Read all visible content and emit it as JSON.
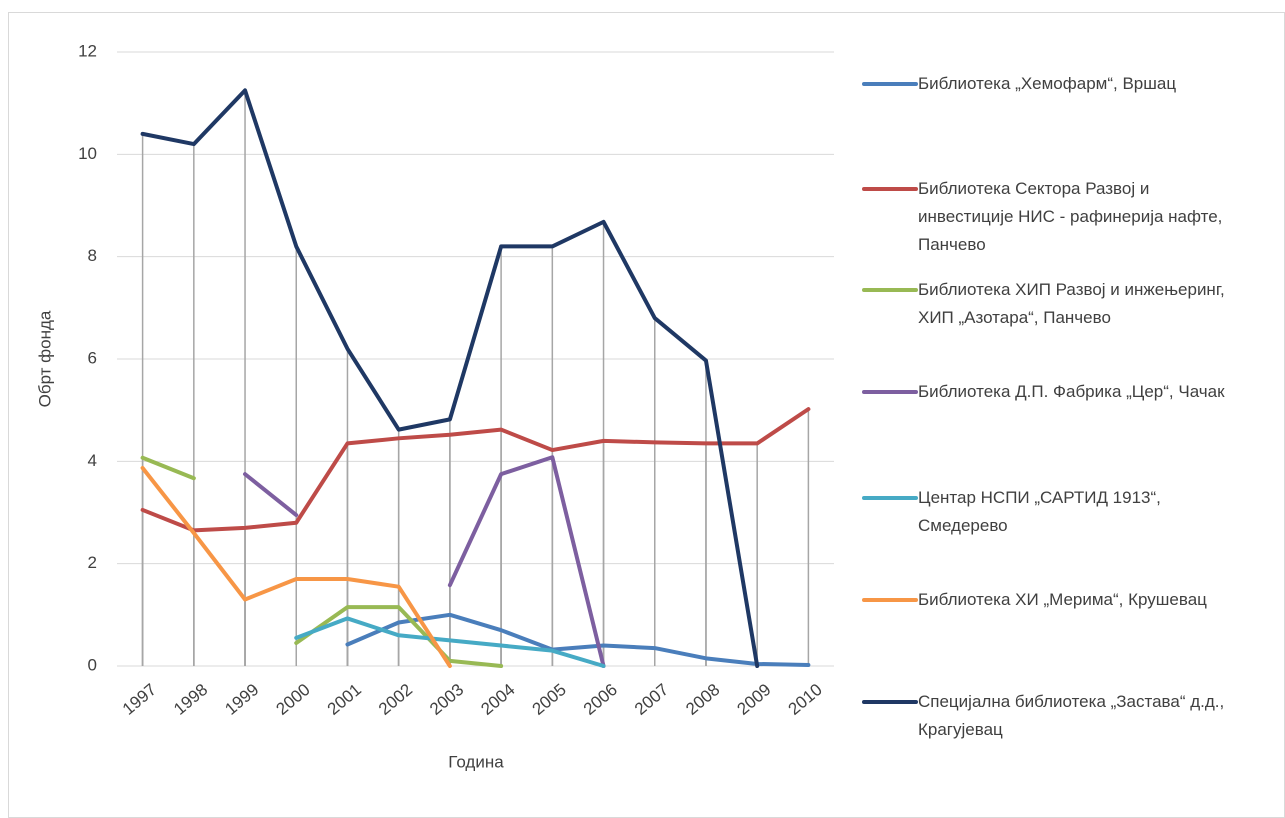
{
  "chart_data": {
    "type": "line",
    "x_label": "Година",
    "y_label": "Обрт фонда",
    "categories": [
      "1997",
      "1998",
      "1999",
      "2000",
      "2001",
      "2002",
      "2003",
      "2004",
      "2005",
      "2006",
      "2007",
      "2008",
      "2009",
      "2010"
    ],
    "ylim": [
      0,
      12
    ],
    "yticks": [
      0,
      2,
      4,
      6,
      8,
      10,
      12
    ],
    "grid": true,
    "drop_lines": true,
    "legend": "right",
    "series": [
      {
        "name": "Библиотека „Хемофарм“, Вршац",
        "color": "#4a7ebb",
        "values": [
          null,
          null,
          null,
          null,
          0.42,
          0.85,
          1.0,
          0.7,
          0.32,
          0.4,
          0.35,
          0.15,
          0.04,
          0.02
        ]
      },
      {
        "name": "Библиотека Сектора Развој и инвестиције НИС - рафинерија нафте, Панчево",
        "color": "#be4b48",
        "values": [
          3.05,
          2.65,
          2.7,
          2.8,
          4.35,
          4.45,
          4.52,
          4.62,
          4.22,
          4.4,
          4.37,
          4.35,
          4.35,
          5.02
        ]
      },
      {
        "name": "Библиотека ХИП Развој и инжењеринг, ХИП „Азотара“, Панчево",
        "color": "#98b954",
        "values": [
          4.07,
          3.67,
          null,
          0.45,
          1.15,
          1.15,
          0.1,
          0.0,
          null,
          null,
          null,
          null,
          null,
          null
        ]
      },
      {
        "name": "Библиотека Д.П. Фабрика „Цер“, Чачак",
        "color": "#7d5fa0",
        "values": [
          null,
          null,
          3.75,
          2.95,
          null,
          null,
          1.58,
          3.75,
          4.08,
          0.0,
          null,
          null,
          null,
          null
        ]
      },
      {
        "name": "Центар НСПИ „САРТИД 1913“, Смедерево",
        "color": "#46aac5",
        "values": [
          null,
          null,
          null,
          0.55,
          0.93,
          0.6,
          0.5,
          0.4,
          0.3,
          0.0,
          null,
          null,
          null,
          null
        ]
      },
      {
        "name": "Библиотека ХИ „Мерима“, Крушевац",
        "color": "#f79646",
        "values": [
          3.87,
          2.6,
          1.3,
          1.7,
          1.7,
          1.55,
          0.0,
          null,
          null,
          null,
          null,
          null,
          null,
          null
        ]
      },
      {
        "name": "Специјална библиотека „Застава“ д.д., Крагујевац",
        "color": "#1f3864",
        "values": [
          10.4,
          10.2,
          11.25,
          8.2,
          6.2,
          4.62,
          4.82,
          8.2,
          8.2,
          8.68,
          6.8,
          5.97,
          0.0,
          null
        ]
      }
    ]
  }
}
